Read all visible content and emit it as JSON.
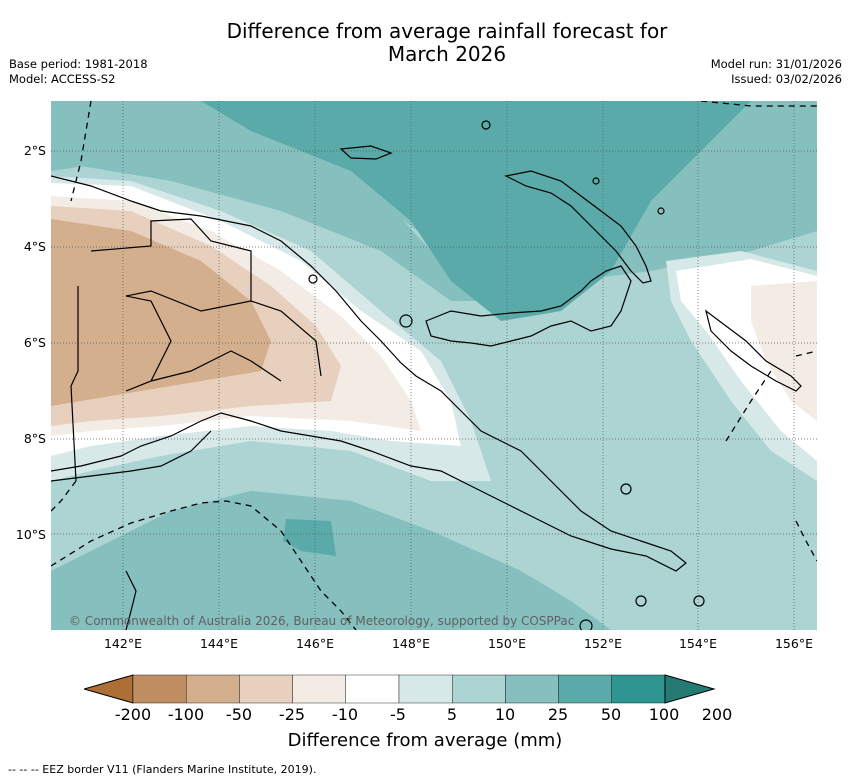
{
  "title_line1": "Difference from average rainfall forecast for",
  "title_line2": "March 2026",
  "base_period": "Base period: 1981-2018",
  "model": "Model: ACCESS-S2",
  "model_run": "Model run: 31/01/2026",
  "issued": "Issued: 03/02/2026",
  "credit": "© Commonwealth of Australia 2026, Bureau of Meteorology, supported by COSPPac",
  "lat_ticks": [
    "2°S",
    "4°S",
    "6°S",
    "8°S",
    "10°S"
  ],
  "lon_ticks": [
    "142°E",
    "144°E",
    "146°E",
    "148°E",
    "150°E",
    "152°E",
    "154°E",
    "156°E"
  ],
  "colorbar": {
    "title": "Difference from average (mm)",
    "labels": [
      "-200",
      "-100",
      "-50",
      "-25",
      "-10",
      "-5",
      "5",
      "10",
      "25",
      "50",
      "100",
      "200"
    ],
    "colors": [
      "#ac7036",
      "#bf8e63",
      "#d4af8e",
      "#e7d0bd",
      "#f2ece5",
      "#ffffff",
      "#d6e8e7",
      "#acd4d3",
      "#85c0bf",
      "#5aaaa9",
      "#2e9591",
      "#257a73"
    ]
  },
  "footnote": "--  --  -- EEZ border V11 (Flanders Marine Institute, 2019)."
}
